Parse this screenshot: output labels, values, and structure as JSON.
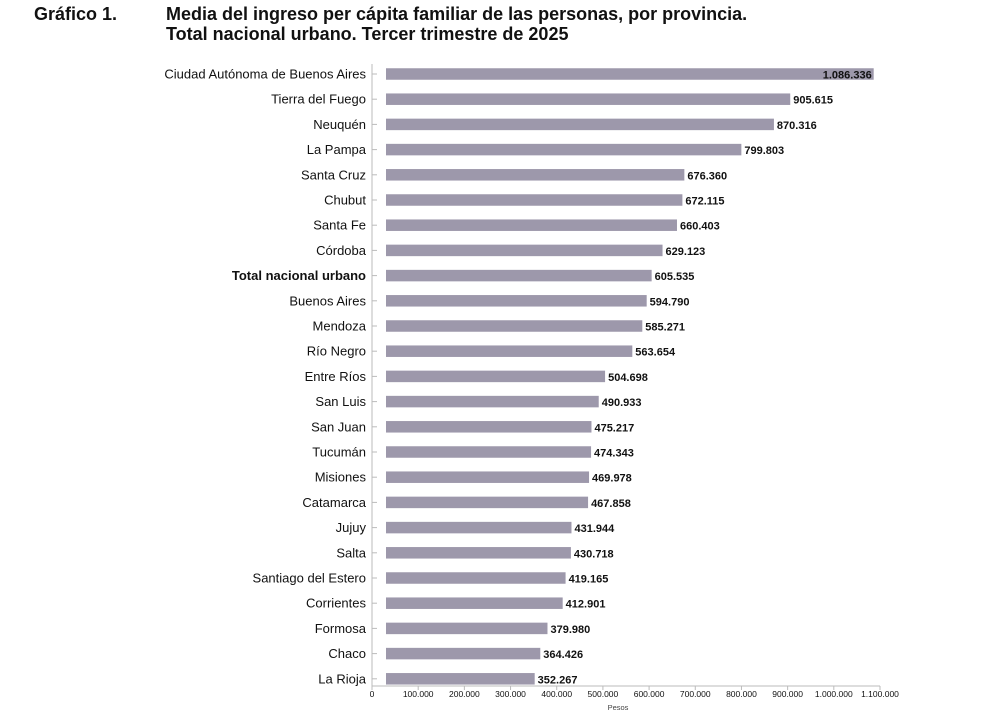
{
  "header": {
    "label": "Gráfico 1.",
    "title_line1": "Media del ingreso per cápita familiar de las personas, por provincia.",
    "title_line2": "Total nacional urbano. Tercer trimestre de 2025"
  },
  "colors": {
    "bar": "#9d98ab",
    "axis": "#bbbbbb",
    "text": "#111111"
  },
  "chart_data": {
    "type": "bar",
    "orientation": "horizontal",
    "title": "Media del ingreso per cápita familiar de las personas, por provincia. Total nacional urbano. Tercer trimestre de 2025",
    "xlabel": "Pesos",
    "ylabel": "",
    "xlim": [
      0,
      1100000
    ],
    "xticks": [
      0,
      100000,
      200000,
      300000,
      400000,
      500000,
      600000,
      700000,
      800000,
      900000,
      1000000,
      1100000
    ],
    "xtick_labels": [
      "0",
      "100.000",
      "200.000",
      "300.000",
      "400.000",
      "500.000",
      "600.000",
      "700.000",
      "800.000",
      "900.000",
      "1.000.000",
      "1.100.000"
    ],
    "categories": [
      "Ciudad Autónoma de Buenos Aires",
      "Tierra del Fuego",
      "Neuquén",
      "La Pampa",
      "Santa Cruz",
      "Chubut",
      "Santa Fe",
      "Córdoba",
      "Total nacional urbano",
      "Buenos Aires",
      "Mendoza",
      "Río Negro",
      "Entre Ríos",
      "San Luis",
      "San Juan",
      "Tucumán",
      "Misiones",
      "Catamarca",
      "Jujuy",
      "Salta",
      "Santiago del Estero",
      "Corrientes",
      "Formosa",
      "Chaco",
      "La Rioja"
    ],
    "values": [
      1086336,
      905615,
      870316,
      799803,
      676360,
      672115,
      660403,
      629123,
      605535,
      594790,
      585271,
      563654,
      504698,
      490933,
      475217,
      474343,
      469978,
      467858,
      431944,
      430718,
      419165,
      412901,
      379980,
      364426,
      352267
    ],
    "value_labels": [
      "1.086.336",
      "905.615",
      "870.316",
      "799.803",
      "676.360",
      "672.115",
      "660.403",
      "629.123",
      "605.535",
      "594.790",
      "585.271",
      "563.654",
      "504.698",
      "490.933",
      "475.217",
      "474.343",
      "469.978",
      "467.858",
      "431.944",
      "430.718",
      "419.165",
      "412.901",
      "379.980",
      "364.426",
      "352.267"
    ],
    "highlight_category": "Total nacional urbano",
    "legend": "none",
    "grid": false
  }
}
